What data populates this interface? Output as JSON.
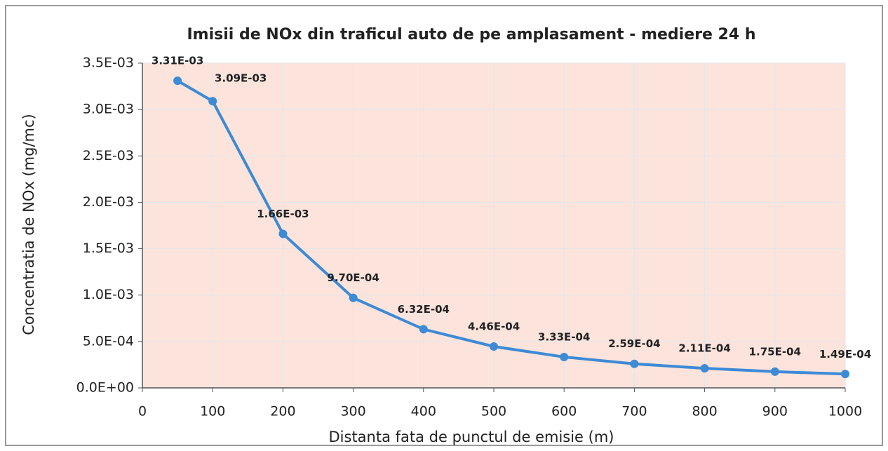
{
  "chart_data": {
    "type": "line",
    "title": "Imisii de NOx din traficul auto de pe amplasament - mediere 24 h",
    "xlabel": "Distanta fata de punctul de emisie (m)",
    "ylabel": "Concentratia de NOx (mg/mc)",
    "x": [
      50,
      100,
      200,
      300,
      400,
      500,
      600,
      700,
      800,
      900,
      1000
    ],
    "series": [
      {
        "name": "NOx",
        "color": "#3d8ad6",
        "values": [
          0.00331,
          0.00309,
          0.00166,
          0.00097,
          0.000632,
          0.000446,
          0.000333,
          0.000259,
          0.000211,
          0.000175,
          0.000149
        ],
        "value_labels": [
          "3.31E-03",
          "3.09E-03",
          "1.66E-03",
          "9.70E-04",
          "6.32E-04",
          "4.46E-04",
          "3.33E-04",
          "2.59E-04",
          "2.11E-04",
          "1.75E-04",
          "1.49E-04"
        ]
      }
    ],
    "xlim": [
      0,
      1000
    ],
    "xticks": [
      0,
      100,
      200,
      300,
      400,
      500,
      600,
      700,
      800,
      900,
      1000
    ],
    "ylim": [
      0,
      0.0035
    ],
    "yticks": [
      {
        "value": 0,
        "label": "0.0E+00"
      },
      {
        "value": 0.0005,
        "label": "5.0E-04"
      },
      {
        "value": 0.001,
        "label": "1.0E-03"
      },
      {
        "value": 0.0015,
        "label": "1.5E-03"
      },
      {
        "value": 0.002,
        "label": "2.0E-03"
      },
      {
        "value": 0.0025,
        "label": "2.5E-03"
      },
      {
        "value": 0.003,
        "label": "3.0E-03"
      },
      {
        "value": 0.0035,
        "label": "3.5E-03"
      }
    ],
    "grid": true
  }
}
